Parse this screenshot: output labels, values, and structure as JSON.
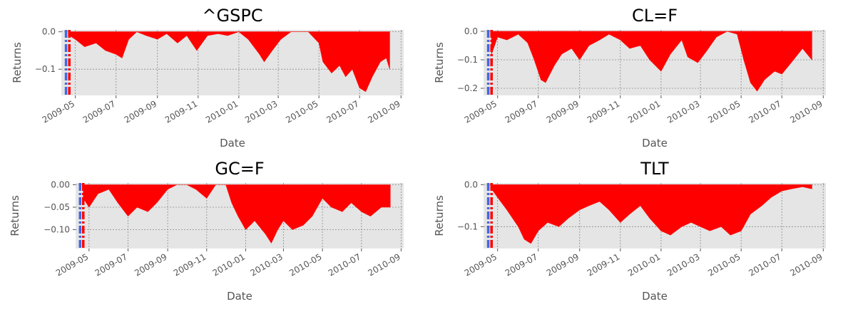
{
  "chart_data": [
    {
      "type": "area",
      "title": "^GSPC",
      "xlabel": "Date",
      "ylabel": "Returns",
      "x_range": [
        "2009-04-10",
        "2010-09-05"
      ],
      "ylim": [
        -0.17,
        0.005
      ],
      "y_ticks": [
        {
          "value": 0.0,
          "label": "0.0"
        },
        {
          "value": -0.1,
          "label": "−0.1"
        }
      ],
      "x_ticks": [
        {
          "value": "2009-05-01",
          "label": "2009-05"
        },
        {
          "value": "2009-07-01",
          "label": "2009-07"
        },
        {
          "value": "2009-09-01",
          "label": "2009-09"
        },
        {
          "value": "2009-11-01",
          "label": "2009-11"
        },
        {
          "value": "2010-01-01",
          "label": "2010-01"
        },
        {
          "value": "2010-03-01",
          "label": "2010-03"
        },
        {
          "value": "2010-05-01",
          "label": "2010-05"
        },
        {
          "value": "2010-07-01",
          "label": "2010-07"
        },
        {
          "value": "2010-09-01",
          "label": "2010-09"
        }
      ],
      "vlines": [
        {
          "x": "2009-04-17",
          "color": "#4169e1",
          "style": "dashdot"
        },
        {
          "x": "2009-04-22",
          "color": "#ff0000",
          "style": "dashdot"
        }
      ],
      "fill_color": "#ff0000",
      "grid": true,
      "series": [
        {
          "x": [
            "2009-04-22",
            "2009-05-01",
            "2009-05-15",
            "2009-06-01",
            "2009-06-15",
            "2009-07-01",
            "2009-07-10",
            "2009-07-20",
            "2009-08-01",
            "2009-08-15",
            "2009-09-01",
            "2009-09-15",
            "2009-10-01",
            "2009-10-15",
            "2009-10-30",
            "2009-11-15",
            "2009-12-01",
            "2009-12-15",
            "2010-01-01",
            "2010-01-15",
            "2010-02-01",
            "2010-02-08",
            "2010-02-20",
            "2010-03-05",
            "2010-03-20",
            "2010-04-01",
            "2010-04-15",
            "2010-05-01",
            "2010-05-07",
            "2010-05-20",
            "2010-06-01",
            "2010-06-10",
            "2010-06-20",
            "2010-07-01",
            "2010-07-10",
            "2010-07-20",
            "2010-08-01",
            "2010-08-10",
            "2010-08-15"
          ],
          "y": [
            -0.01,
            -0.02,
            -0.04,
            -0.03,
            -0.05,
            -0.06,
            -0.07,
            -0.02,
            0.0,
            -0.01,
            -0.02,
            -0.005,
            -0.03,
            -0.01,
            -0.05,
            -0.01,
            -0.005,
            -0.01,
            0.0,
            -0.02,
            -0.06,
            -0.08,
            -0.05,
            -0.02,
            0.0,
            0.0,
            0.0,
            -0.03,
            -0.08,
            -0.11,
            -0.09,
            -0.12,
            -0.1,
            -0.15,
            -0.16,
            -0.12,
            -0.08,
            -0.07,
            -0.1
          ]
        }
      ]
    },
    {
      "type": "area",
      "title": "CL=F",
      "xlabel": "Date",
      "ylabel": "Returns",
      "x_range": [
        "2009-04-10",
        "2010-09-05"
      ],
      "ylim": [
        -0.225,
        0.005
      ],
      "y_ticks": [
        {
          "value": 0.0,
          "label": "0.0"
        },
        {
          "value": -0.1,
          "label": "−0.1"
        },
        {
          "value": -0.2,
          "label": "−0.2"
        }
      ],
      "x_ticks": [
        {
          "value": "2009-05-01",
          "label": "2009-05"
        },
        {
          "value": "2009-07-01",
          "label": "2009-07"
        },
        {
          "value": "2009-09-01",
          "label": "2009-09"
        },
        {
          "value": "2009-11-01",
          "label": "2009-11"
        },
        {
          "value": "2010-01-01",
          "label": "2010-01"
        },
        {
          "value": "2010-03-01",
          "label": "2010-03"
        },
        {
          "value": "2010-05-01",
          "label": "2010-05"
        },
        {
          "value": "2010-07-01",
          "label": "2010-07"
        },
        {
          "value": "2010-09-01",
          "label": "2010-09"
        }
      ],
      "vlines": [
        {
          "x": "2009-04-17",
          "color": "#4169e1",
          "style": "dashdot"
        },
        {
          "x": "2009-04-22",
          "color": "#ff0000",
          "style": "dashdot"
        }
      ],
      "fill_color": "#ff0000",
      "grid": true,
      "series": [
        {
          "x": [
            "2009-04-22",
            "2009-05-01",
            "2009-05-15",
            "2009-06-01",
            "2009-06-15",
            "2009-06-25",
            "2009-07-05",
            "2009-07-12",
            "2009-07-25",
            "2009-08-05",
            "2009-08-20",
            "2009-09-01",
            "2009-09-15",
            "2009-10-01",
            "2009-10-15",
            "2009-11-01",
            "2009-11-15",
            "2009-12-01",
            "2009-12-15",
            "2010-01-01",
            "2010-01-15",
            "2010-02-01",
            "2010-02-10",
            "2010-02-25",
            "2010-03-10",
            "2010-03-25",
            "2010-04-10",
            "2010-04-25",
            "2010-05-05",
            "2010-05-15",
            "2010-05-25",
            "2010-06-05",
            "2010-06-20",
            "2010-07-01",
            "2010-07-15",
            "2010-08-01",
            "2010-08-15"
          ],
          "y": [
            -0.08,
            -0.02,
            -0.03,
            -0.01,
            -0.04,
            -0.1,
            -0.17,
            -0.18,
            -0.12,
            -0.08,
            -0.06,
            -0.1,
            -0.05,
            -0.03,
            -0.01,
            -0.03,
            -0.06,
            -0.05,
            -0.1,
            -0.14,
            -0.08,
            -0.03,
            -0.09,
            -0.11,
            -0.07,
            -0.02,
            0.0,
            -0.01,
            -0.1,
            -0.18,
            -0.21,
            -0.17,
            -0.14,
            -0.15,
            -0.11,
            -0.06,
            -0.1
          ]
        }
      ]
    },
    {
      "type": "area",
      "title": "GC=F",
      "xlabel": "Date",
      "ylabel": "Returns",
      "x_range": [
        "2009-04-10",
        "2010-09-05"
      ],
      "ylim": [
        -0.142,
        0.004
      ],
      "y_ticks": [
        {
          "value": 0.0,
          "label": "0.00"
        },
        {
          "value": -0.05,
          "label": "−0.05"
        },
        {
          "value": -0.1,
          "label": "−0.10"
        }
      ],
      "x_ticks": [
        {
          "value": "2009-05-01",
          "label": "2009-05"
        },
        {
          "value": "2009-07-01",
          "label": "2009-07"
        },
        {
          "value": "2009-09-01",
          "label": "2009-09"
        },
        {
          "value": "2009-11-01",
          "label": "2009-11"
        },
        {
          "value": "2010-01-01",
          "label": "2010-01"
        },
        {
          "value": "2010-03-01",
          "label": "2010-03"
        },
        {
          "value": "2010-05-01",
          "label": "2010-05"
        },
        {
          "value": "2010-07-01",
          "label": "2010-07"
        },
        {
          "value": "2010-09-01",
          "label": "2010-09"
        }
      ],
      "vlines": [
        {
          "x": "2009-04-17",
          "color": "#4169e1",
          "style": "dashdot"
        },
        {
          "x": "2009-04-22",
          "color": "#ff0000",
          "style": "dashdot"
        }
      ],
      "fill_color": "#ff0000",
      "grid": true,
      "series": [
        {
          "x": [
            "2009-04-22",
            "2009-05-01",
            "2009-05-15",
            "2009-06-01",
            "2009-06-15",
            "2009-07-01",
            "2009-07-15",
            "2009-08-01",
            "2009-08-15",
            "2009-09-01",
            "2009-09-15",
            "2009-10-01",
            "2009-10-15",
            "2009-11-01",
            "2009-11-15",
            "2009-12-01",
            "2009-12-10",
            "2009-12-20",
            "2010-01-01",
            "2010-01-15",
            "2010-02-01",
            "2010-02-10",
            "2010-02-20",
            "2010-03-01",
            "2010-03-15",
            "2010-04-01",
            "2010-04-15",
            "2010-05-01",
            "2010-05-15",
            "2010-06-01",
            "2010-06-15",
            "2010-07-01",
            "2010-07-15",
            "2010-08-01",
            "2010-08-15"
          ],
          "y": [
            -0.03,
            -0.05,
            -0.02,
            -0.01,
            -0.04,
            -0.07,
            -0.05,
            -0.06,
            -0.04,
            -0.01,
            0.0,
            0.0,
            -0.01,
            -0.03,
            0.0,
            0.0,
            -0.04,
            -0.07,
            -0.1,
            -0.08,
            -0.11,
            -0.13,
            -0.1,
            -0.08,
            -0.1,
            -0.09,
            -0.07,
            -0.03,
            -0.05,
            -0.06,
            -0.04,
            -0.06,
            -0.07,
            -0.05,
            -0.05
          ]
        }
      ]
    },
    {
      "type": "area",
      "title": "TLT",
      "xlabel": "Date",
      "ylabel": "Returns",
      "x_range": [
        "2009-04-10",
        "2010-09-05"
      ],
      "ylim": [
        -0.152,
        0.004
      ],
      "y_ticks": [
        {
          "value": 0.0,
          "label": "0.0"
        },
        {
          "value": -0.1,
          "label": "−0.1"
        }
      ],
      "x_ticks": [
        {
          "value": "2009-05-01",
          "label": "2009-05"
        },
        {
          "value": "2009-07-01",
          "label": "2009-07"
        },
        {
          "value": "2009-09-01",
          "label": "2009-09"
        },
        {
          "value": "2009-11-01",
          "label": "2009-11"
        },
        {
          "value": "2010-01-01",
          "label": "2010-01"
        },
        {
          "value": "2010-03-01",
          "label": "2010-03"
        },
        {
          "value": "2010-05-01",
          "label": "2010-05"
        },
        {
          "value": "2010-07-01",
          "label": "2010-07"
        },
        {
          "value": "2010-09-01",
          "label": "2010-09"
        }
      ],
      "vlines": [
        {
          "x": "2009-04-17",
          "color": "#4169e1",
          "style": "dashdot"
        },
        {
          "x": "2009-04-22",
          "color": "#ff0000",
          "style": "dashdot"
        }
      ],
      "fill_color": "#ff0000",
      "grid": true,
      "series": [
        {
          "x": [
            "2009-04-22",
            "2009-05-01",
            "2009-05-15",
            "2009-06-01",
            "2009-06-10",
            "2009-06-20",
            "2009-07-01",
            "2009-07-15",
            "2009-08-01",
            "2009-08-15",
            "2009-09-01",
            "2009-09-15",
            "2009-10-01",
            "2009-10-15",
            "2009-11-01",
            "2009-11-15",
            "2009-12-01",
            "2009-12-15",
            "2010-01-01",
            "2010-01-15",
            "2010-02-01",
            "2010-02-15",
            "2010-03-01",
            "2010-03-15",
            "2010-04-01",
            "2010-04-15",
            "2010-05-01",
            "2010-05-15",
            "2010-06-01",
            "2010-06-15",
            "2010-07-01",
            "2010-07-15",
            "2010-08-01",
            "2010-08-15"
          ],
          "y": [
            -0.01,
            -0.03,
            -0.06,
            -0.1,
            -0.13,
            -0.14,
            -0.11,
            -0.09,
            -0.1,
            -0.08,
            -0.06,
            -0.05,
            -0.04,
            -0.06,
            -0.09,
            -0.07,
            -0.05,
            -0.08,
            -0.11,
            -0.12,
            -0.1,
            -0.09,
            -0.1,
            -0.11,
            -0.1,
            -0.12,
            -0.11,
            -0.07,
            -0.05,
            -0.03,
            -0.015,
            -0.01,
            -0.005,
            -0.01
          ]
        }
      ]
    }
  ]
}
